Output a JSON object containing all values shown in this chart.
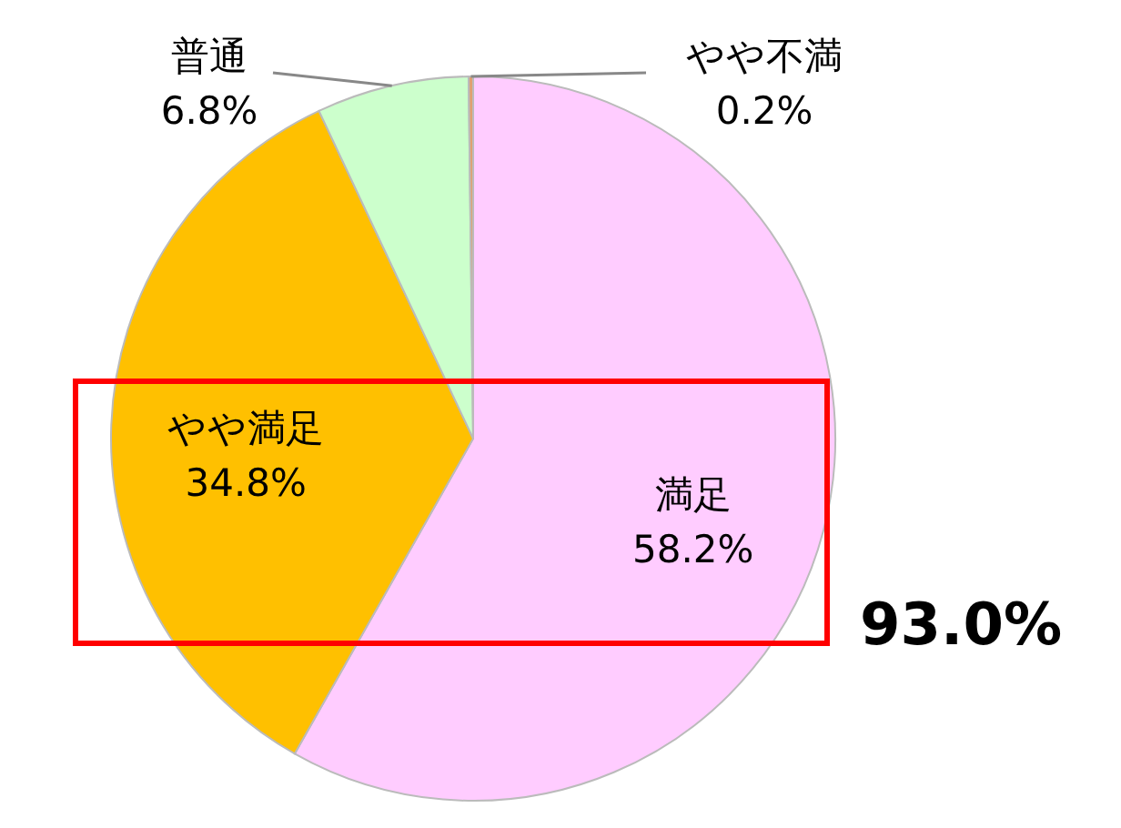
{
  "chart_data": {
    "type": "pie",
    "categories": [
      "満足",
      "やや満足",
      "普通",
      "やや不満"
    ],
    "values": [
      58.2,
      34.8,
      6.8,
      0.2
    ],
    "value_labels": [
      "58.2%",
      "34.8%",
      "6.8%",
      "0.2%"
    ],
    "colors": [
      "#ffccff",
      "#ffc000",
      "#ccffcc",
      "#e0a070"
    ],
    "annotations": [
      "93.0%"
    ],
    "legend": false
  }
}
